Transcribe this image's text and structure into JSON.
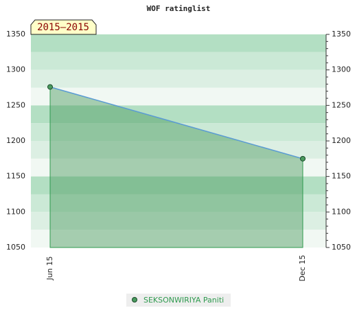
{
  "chart_data": {
    "type": "area",
    "title": "WOF ratinglist",
    "annotation": "2015–2015",
    "categories": [
      "Jun 15",
      "Dec 15"
    ],
    "series": [
      {
        "name": "SEKSONWIRIYA Paniti",
        "color": "#4a9a5e",
        "values": [
          1276,
          1175
        ]
      }
    ],
    "ylim": [
      1050,
      1350
    ],
    "yticks": [
      1050,
      1100,
      1150,
      1200,
      1250,
      1300,
      1350
    ],
    "y2lim": [
      1050,
      1350
    ],
    "y2ticks": [
      1050,
      1100,
      1150,
      1200,
      1250,
      1300,
      1350
    ]
  }
}
